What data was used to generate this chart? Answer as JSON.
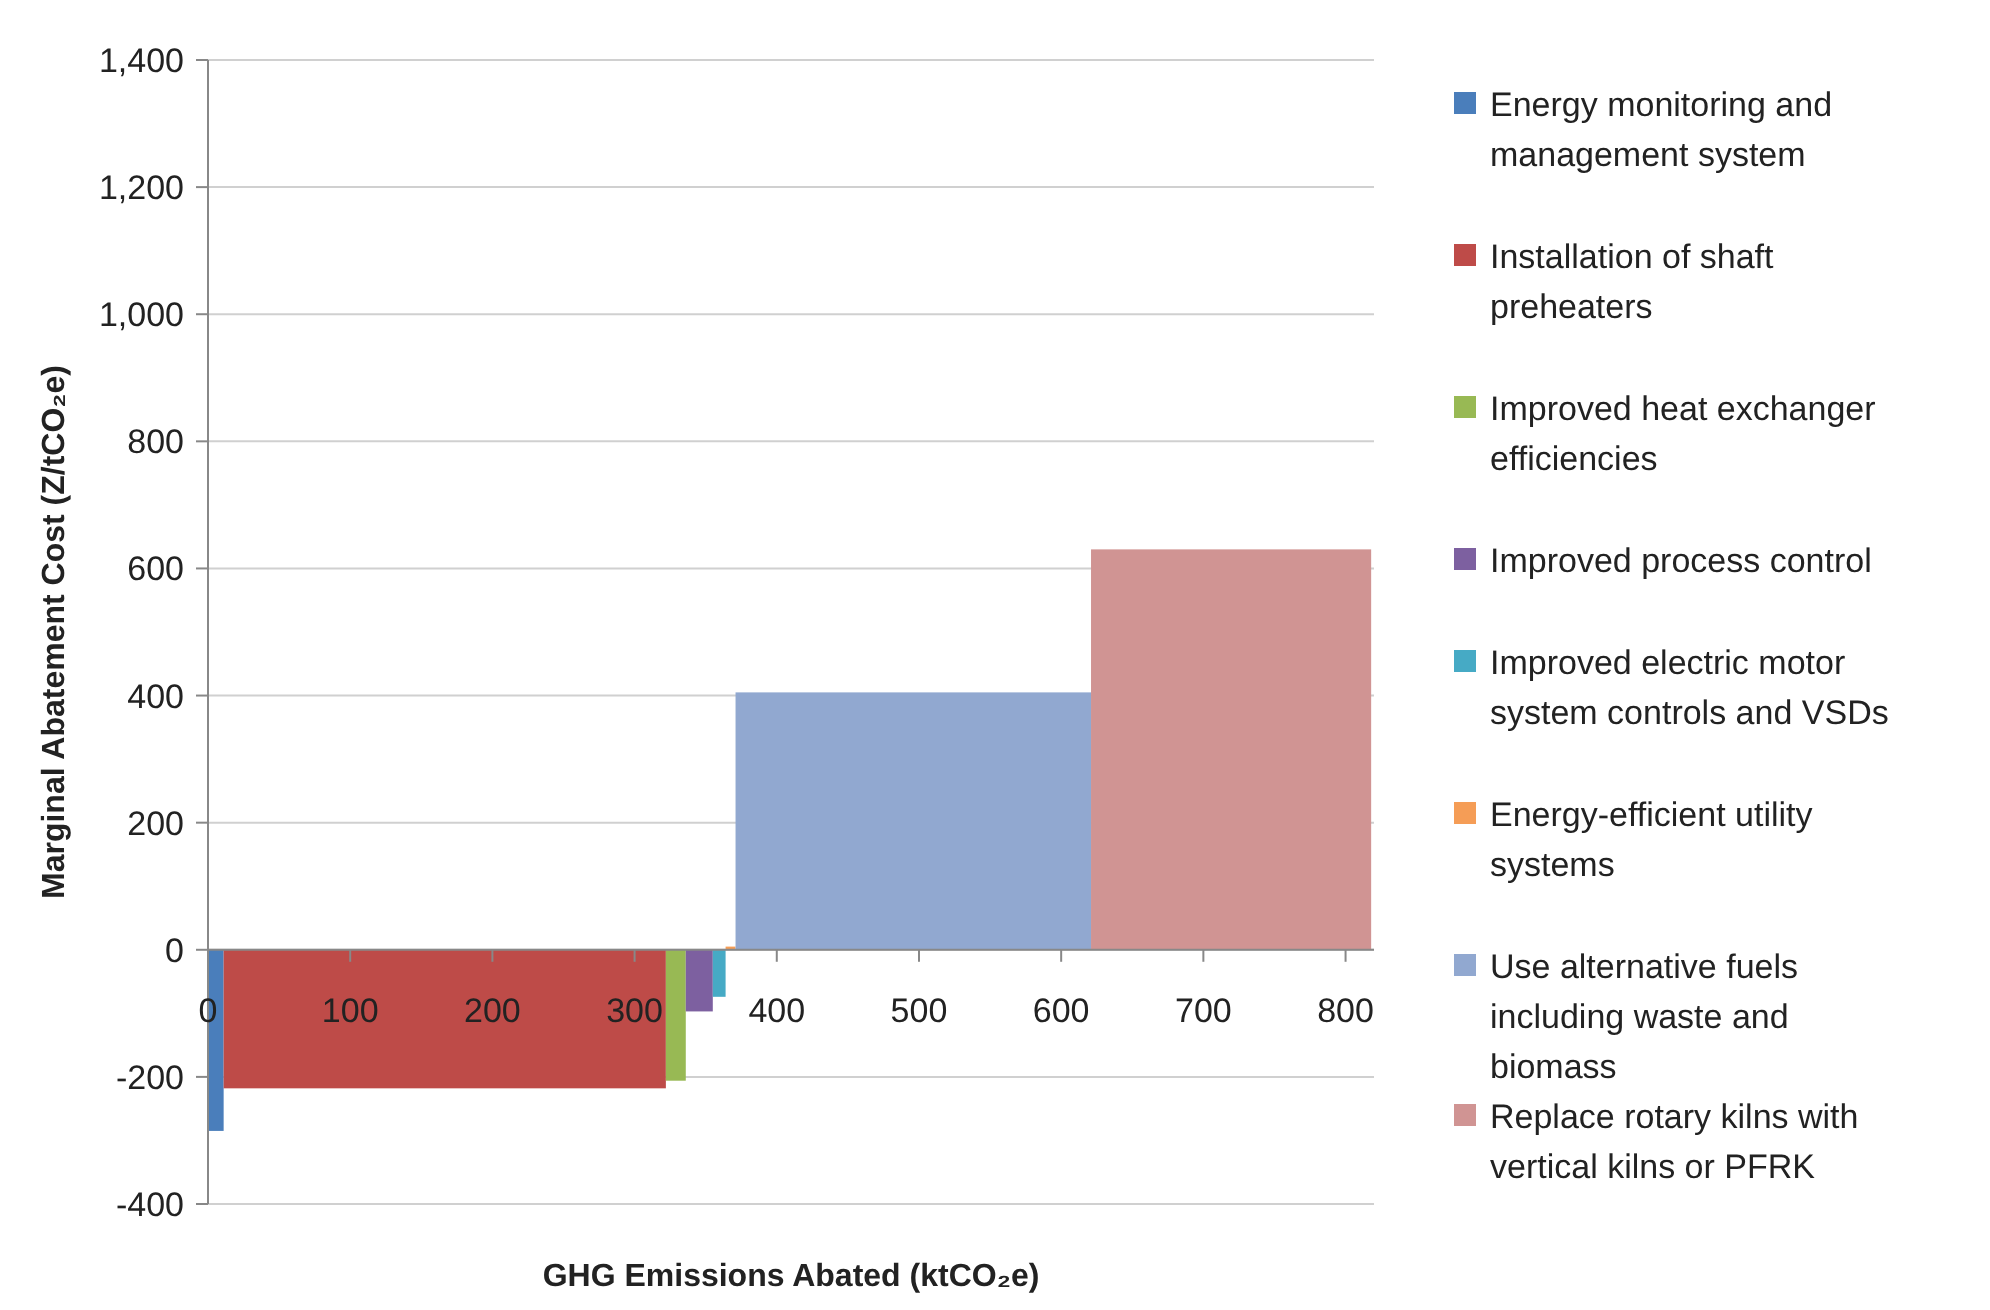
{
  "chart_data": {
    "type": "histogram",
    "xlabel": "GHG  Emissions Abated (ktCO₂e)",
    "ylabel": "Marginal Abatement Cost (Z/tCO₂e)",
    "bins": [
      0,
      11,
      322,
      336,
      355,
      364,
      371,
      621,
      818
    ],
    "series": [
      {
        "name": "Energy monitoring and management system",
        "color": "#4a7ebb",
        "values": [
          -285,
          null,
          null,
          null,
          null,
          null,
          null,
          null
        ]
      },
      {
        "name": "Installation of shaft preheaters",
        "color": "#be4b48",
        "values": [
          null,
          -218,
          null,
          null,
          null,
          null,
          null,
          null
        ]
      },
      {
        "name": "Improved heat exchanger efficiencies",
        "color": "#98b954",
        "values": [
          null,
          null,
          -206,
          null,
          null,
          null,
          null,
          null
        ]
      },
      {
        "name": "Improved process control",
        "color": "#7d60a0",
        "values": [
          null,
          null,
          null,
          -97,
          null,
          null,
          null,
          null
        ]
      },
      {
        "name": "Improved electric motor system controls and VSDs",
        "color": "#46aac5",
        "values": [
          null,
          null,
          null,
          null,
          -74,
          null,
          null,
          null
        ]
      },
      {
        "name": "Energy-efficient utility systems",
        "color": "#f59d56",
        "values": [
          null,
          null,
          null,
          null,
          null,
          5,
          null,
          null
        ]
      },
      {
        "name": "Use alternative fuels including waste and biomass",
        "color": "#91a8d0",
        "values": [
          null,
          null,
          null,
          null,
          null,
          null,
          405,
          null
        ]
      },
      {
        "name": "Replace rotary kilns with vertical kilns or PFRK",
        "color": "#d09493",
        "values": [
          null,
          null,
          null,
          null,
          null,
          null,
          null,
          630
        ]
      }
    ],
    "xlim": [
      0,
      820
    ],
    "xticks": [
      0,
      100,
      200,
      300,
      400,
      500,
      600,
      700,
      800
    ],
    "ylim": [
      -400,
      1400
    ],
    "yticks": [
      {
        "value": -400,
        "label": "-400"
      },
      {
        "value": -200,
        "label": "-200"
      },
      0,
      200,
      400,
      600,
      800,
      {
        "value": 1000,
        "label": "1,000"
      },
      {
        "value": 1200,
        "label": "1,200"
      },
      {
        "value": 1400,
        "label": "1,400"
      }
    ],
    "grid": "y",
    "legend": "right"
  }
}
